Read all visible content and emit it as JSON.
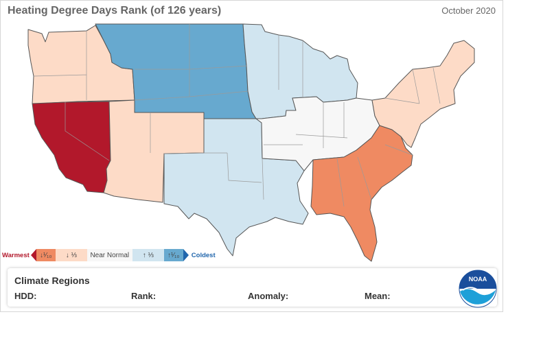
{
  "header": {
    "title": "Heating Degree Days Rank (of 126 years)",
    "period": "October 2020"
  },
  "legend": {
    "warmest_label": "Warmest",
    "coldest_label": "Coldest",
    "bins": [
      {
        "label": "↓¹⁄₁₀",
        "color": "#ef8a62"
      },
      {
        "label": "↓ ⅓",
        "color": "#fddbc7"
      },
      {
        "label": "Near Normal",
        "color": "#f7f7f7"
      },
      {
        "label": "↑ ⅓",
        "color": "#d1e5f0"
      },
      {
        "label": "↑¹⁄₁₀",
        "color": "#67a9cf"
      }
    ],
    "warmest_color": "#b2182b",
    "coldest_color": "#2166ac"
  },
  "regions": {
    "northwest": {
      "color": "#fddbc7"
    },
    "west": {
      "color": "#b2182b"
    },
    "southwest": {
      "color": "#fddbc7"
    },
    "northern_rockies_plains": {
      "color": "#67a9cf"
    },
    "south": {
      "color": "#d1e5f0"
    },
    "upper_midwest": {
      "color": "#d1e5f0"
    },
    "ohio_valley": {
      "color": "#f7f7f7"
    },
    "southeast": {
      "color": "#ef8a62"
    },
    "northeast": {
      "color": "#fddbc7"
    }
  },
  "info_panel": {
    "title": "Climate Regions",
    "hdd_label": "HDD:",
    "rank_label": "Rank:",
    "anomaly_label": "Anomaly:",
    "mean_label": "Mean:"
  },
  "logo": {
    "text": "NOAA"
  }
}
